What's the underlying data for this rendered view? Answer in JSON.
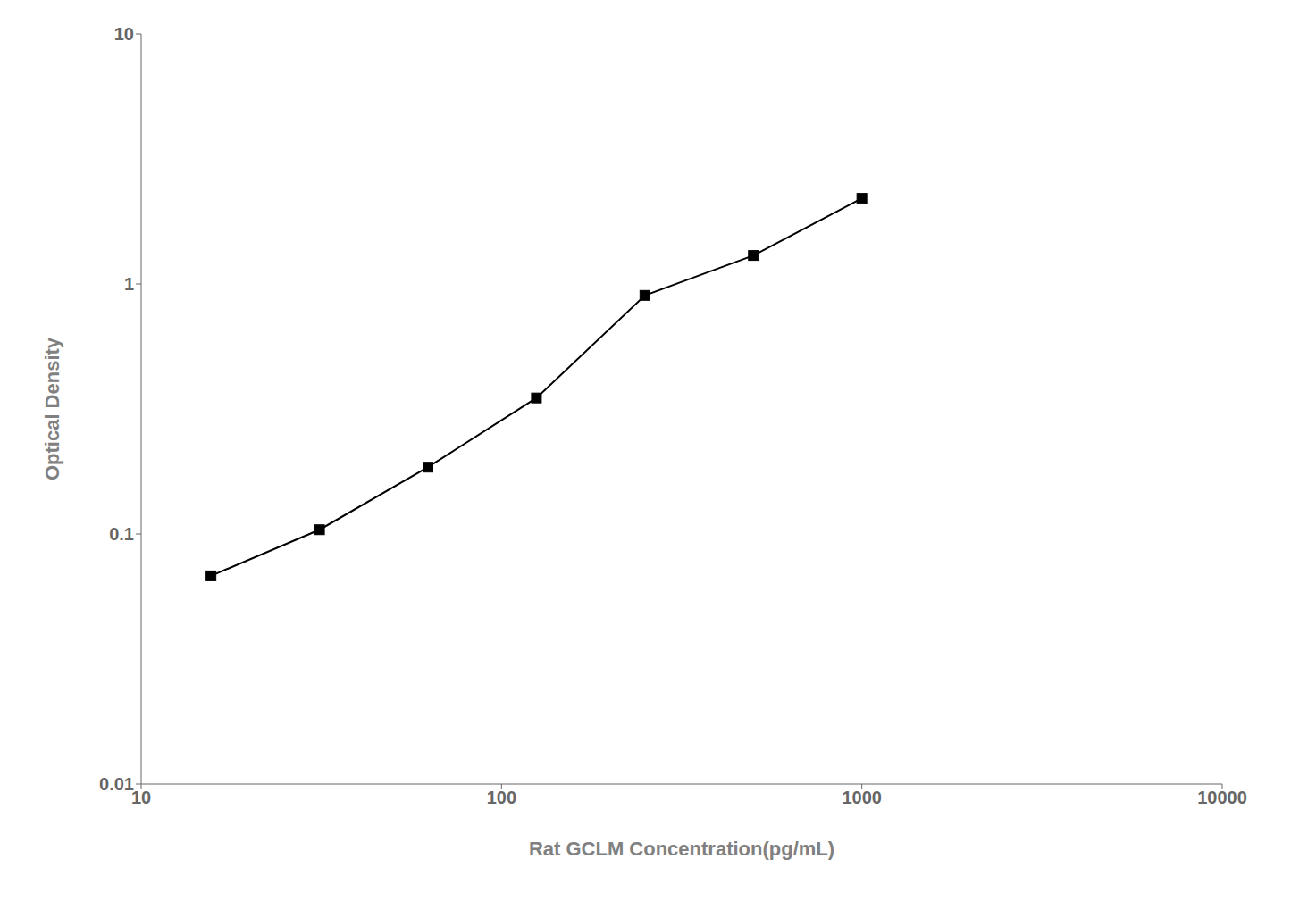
{
  "chart_data": {
    "type": "line",
    "x": [
      15.625,
      31.25,
      62.5,
      125,
      250,
      500,
      1000
    ],
    "values": [
      0.068,
      0.104,
      0.185,
      0.35,
      0.9,
      1.3,
      2.2
    ],
    "xlabel": "Rat GCLM Concentration(pg/mL)",
    "ylabel": "Optical Density",
    "xlim": [
      10,
      10000
    ],
    "ylim": [
      0.01,
      10
    ],
    "xticks": [
      10,
      100,
      1000,
      10000
    ],
    "yticks": [
      0.01,
      0.1,
      1,
      10
    ],
    "log": true,
    "grid": false,
    "color": "#000000",
    "marker": "square"
  }
}
